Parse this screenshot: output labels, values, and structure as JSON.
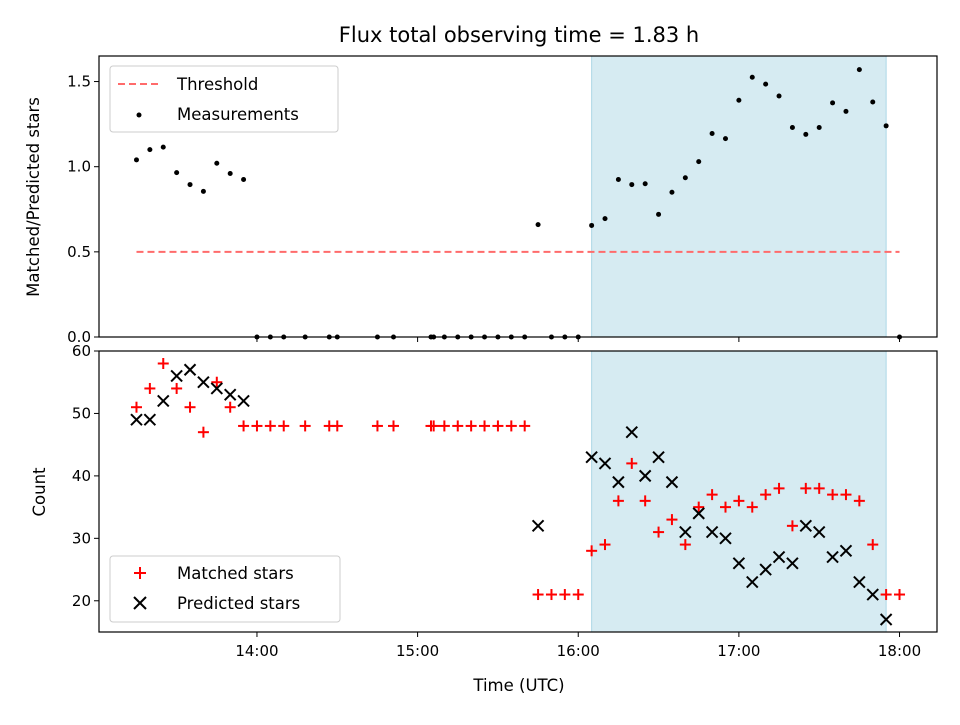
{
  "colors": {
    "threshold": "#ff6b6b",
    "measurements": "#000000",
    "matched": "#ff0000",
    "predicted": "#000000",
    "highlight": "#add8e6"
  },
  "chart_data": [
    {
      "type": "scatter",
      "title": "Flux total observing time = 1.83 h",
      "xlabel": "",
      "ylabel": "Matched/Predicted stars",
      "xlim": [
        "13:01",
        "18:14"
      ],
      "ylim": [
        0,
        1.65
      ],
      "yticks": [
        "0.0",
        "0.5",
        "1.0",
        "1.5"
      ],
      "highlight_span": [
        "16:05",
        "17:55"
      ],
      "legend_position": "upper left",
      "threshold": {
        "name": "Threshold",
        "value": 0.5,
        "x_range": [
          "13:15",
          "18:00"
        ]
      },
      "series": [
        {
          "name": "Measurements",
          "marker": "dot",
          "points": [
            [
              "13:15",
              1.04
            ],
            [
              "13:20",
              1.1
            ],
            [
              "13:25",
              1.115
            ],
            [
              "13:30",
              0.965
            ],
            [
              "13:35",
              0.895
            ],
            [
              "13:40",
              0.855
            ],
            [
              "13:45",
              1.02
            ],
            [
              "13:50",
              0.96
            ],
            [
              "13:55",
              0.925
            ],
            [
              "14:00",
              0.0
            ],
            [
              "14:05",
              0.0
            ],
            [
              "14:10",
              0.0
            ],
            [
              "14:18",
              0.0
            ],
            [
              "14:27",
              0.0
            ],
            [
              "14:30",
              0.0
            ],
            [
              "14:45",
              0.0
            ],
            [
              "14:51",
              0.0
            ],
            [
              "15:05",
              0.0
            ],
            [
              "15:06",
              0.0
            ],
            [
              "15:10",
              0.0
            ],
            [
              "15:15",
              0.0
            ],
            [
              "15:20",
              0.0
            ],
            [
              "15:25",
              0.0
            ],
            [
              "15:30",
              0.0
            ],
            [
              "15:35",
              0.0
            ],
            [
              "15:40",
              0.0
            ],
            [
              "15:45",
              0.66
            ],
            [
              "15:50",
              0.0
            ],
            [
              "15:55",
              0.0
            ],
            [
              "16:00",
              0.0
            ],
            [
              "16:05",
              0.655
            ],
            [
              "16:10",
              0.695
            ],
            [
              "16:15",
              0.925
            ],
            [
              "16:20",
              0.895
            ],
            [
              "16:25",
              0.9
            ],
            [
              "16:30",
              0.72
            ],
            [
              "16:35",
              0.85
            ],
            [
              "16:40",
              0.935
            ],
            [
              "16:45",
              1.03
            ],
            [
              "16:50",
              1.195
            ],
            [
              "16:55",
              1.165
            ],
            [
              "17:00",
              1.39
            ],
            [
              "17:05",
              1.525
            ],
            [
              "17:10",
              1.485
            ],
            [
              "17:15",
              1.415
            ],
            [
              "17:20",
              1.23
            ],
            [
              "17:25",
              1.19
            ],
            [
              "17:30",
              1.23
            ],
            [
              "17:35",
              1.375
            ],
            [
              "17:40",
              1.325
            ],
            [
              "17:45",
              1.57
            ],
            [
              "17:50",
              1.38
            ],
            [
              "17:55",
              1.24
            ],
            [
              "18:00",
              0.0
            ]
          ]
        }
      ]
    },
    {
      "type": "scatter",
      "title": "",
      "xlabel": "Time (UTC)",
      "ylabel": "Count",
      "xlim": [
        "13:01",
        "18:14"
      ],
      "ylim": [
        15,
        60
      ],
      "xticks": [
        "14:00",
        "15:00",
        "16:00",
        "17:00",
        "18:00"
      ],
      "yticks": [
        "20",
        "30",
        "40",
        "50",
        "60"
      ],
      "highlight_span": [
        "16:05",
        "17:55"
      ],
      "legend_position": "lower left",
      "series": [
        {
          "name": "Matched stars",
          "marker": "plus",
          "points": [
            [
              "13:15",
              51
            ],
            [
              "13:20",
              54
            ],
            [
              "13:25",
              58
            ],
            [
              "13:30",
              54
            ],
            [
              "13:35",
              51
            ],
            [
              "13:40",
              47
            ],
            [
              "13:45",
              55
            ],
            [
              "13:50",
              51
            ],
            [
              "13:55",
              48
            ],
            [
              "14:00",
              48
            ],
            [
              "14:05",
              48
            ],
            [
              "14:10",
              48
            ],
            [
              "14:18",
              48
            ],
            [
              "14:27",
              48
            ],
            [
              "14:30",
              48
            ],
            [
              "14:45",
              48
            ],
            [
              "14:51",
              48
            ],
            [
              "15:05",
              48
            ],
            [
              "15:06",
              48
            ],
            [
              "15:10",
              48
            ],
            [
              "15:15",
              48
            ],
            [
              "15:20",
              48
            ],
            [
              "15:25",
              48
            ],
            [
              "15:30",
              48
            ],
            [
              "15:35",
              48
            ],
            [
              "15:40",
              48
            ],
            [
              "15:45",
              21
            ],
            [
              "15:50",
              21
            ],
            [
              "15:55",
              21
            ],
            [
              "16:00",
              21
            ],
            [
              "16:05",
              28
            ],
            [
              "16:10",
              29
            ],
            [
              "16:15",
              36
            ],
            [
              "16:20",
              42
            ],
            [
              "16:25",
              36
            ],
            [
              "16:30",
              31
            ],
            [
              "16:35",
              33
            ],
            [
              "16:40",
              29
            ],
            [
              "16:45",
              35
            ],
            [
              "16:50",
              37
            ],
            [
              "16:55",
              35
            ],
            [
              "17:00",
              36
            ],
            [
              "17:05",
              35
            ],
            [
              "17:10",
              37
            ],
            [
              "17:15",
              38
            ],
            [
              "17:20",
              32
            ],
            [
              "17:25",
              38
            ],
            [
              "17:30",
              38
            ],
            [
              "17:35",
              37
            ],
            [
              "17:40",
              37
            ],
            [
              "17:45",
              36
            ],
            [
              "17:50",
              29
            ],
            [
              "17:55",
              21
            ],
            [
              "18:00",
              21
            ]
          ]
        },
        {
          "name": "Predicted stars",
          "marker": "x",
          "points": [
            [
              "13:15",
              49
            ],
            [
              "13:20",
              49
            ],
            [
              "13:25",
              52
            ],
            [
              "13:30",
              56
            ],
            [
              "13:35",
              57
            ],
            [
              "13:40",
              55
            ],
            [
              "13:45",
              54
            ],
            [
              "13:50",
              53
            ],
            [
              "13:55",
              52
            ],
            [
              "15:45",
              32
            ],
            [
              "16:05",
              43
            ],
            [
              "16:10",
              42
            ],
            [
              "16:15",
              39
            ],
            [
              "16:20",
              47
            ],
            [
              "16:25",
              40
            ],
            [
              "16:30",
              43
            ],
            [
              "16:35",
              39
            ],
            [
              "16:40",
              31
            ],
            [
              "16:45",
              34
            ],
            [
              "16:50",
              31
            ],
            [
              "16:55",
              30
            ],
            [
              "17:00",
              26
            ],
            [
              "17:05",
              23
            ],
            [
              "17:10",
              25
            ],
            [
              "17:15",
              27
            ],
            [
              "17:20",
              26
            ],
            [
              "17:25",
              32
            ],
            [
              "17:30",
              31
            ],
            [
              "17:35",
              27
            ],
            [
              "17:40",
              28
            ],
            [
              "17:45",
              23
            ],
            [
              "17:50",
              21
            ],
            [
              "17:55",
              17
            ]
          ]
        }
      ]
    }
  ]
}
